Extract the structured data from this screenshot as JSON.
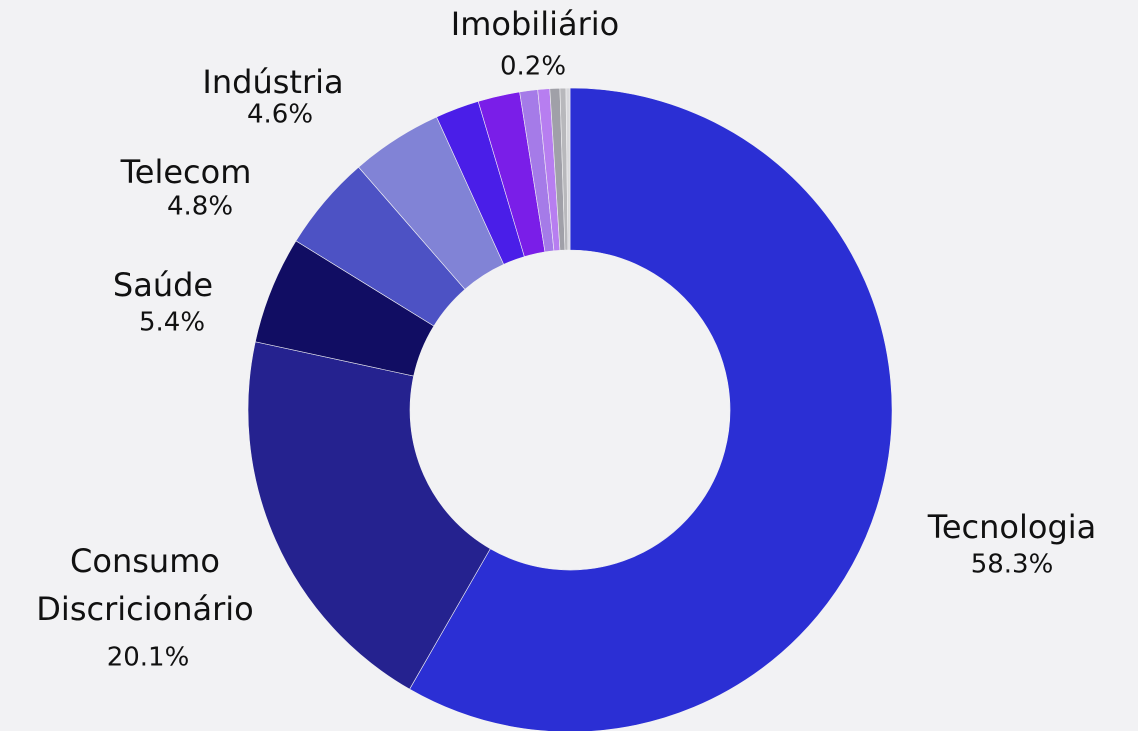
{
  "chart_data": {
    "type": "donut",
    "categories": [
      "Tecnologia",
      "Consumo Discricionário",
      "Saúde",
      "Telecom",
      "Indústria",
      null,
      null,
      null,
      null,
      null,
      null,
      "Imobiliário"
    ],
    "values": [
      58.3,
      20.1,
      5.4,
      4.8,
      4.6,
      2.2,
      2.1,
      0.9,
      0.6,
      0.5,
      0.3,
      0.2
    ],
    "value_labels": [
      "58.3%",
      "20.1%",
      "5.4%",
      "4.8%",
      "4.6%",
      null,
      null,
      null,
      null,
      null,
      null,
      "0.2%"
    ],
    "colors": [
      "#2b2fd4",
      "#25228f",
      "#110d63",
      "#4d52c4",
      "#8183d6",
      "#4a1ee8",
      "#7a1ee8",
      "#a57be8",
      "#b77ef0",
      "#a0a0a8",
      "#b8b8bc",
      "#d8d8dc"
    ]
  }
}
